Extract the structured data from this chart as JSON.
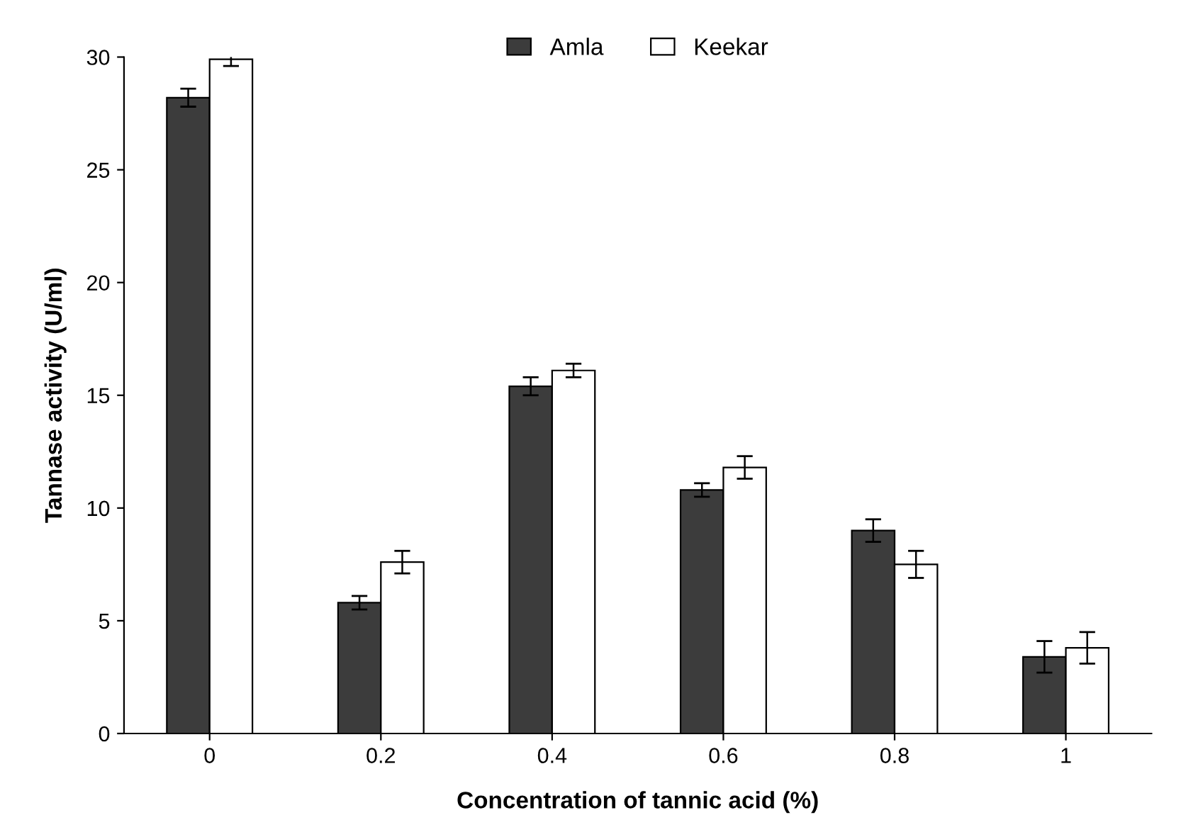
{
  "chart_data": {
    "type": "bar",
    "xlabel": "Concentration of tannic acid (%)",
    "ylabel": "Tannase activity (U/ml)",
    "categories": [
      "0",
      "0.2",
      "0.4",
      "0.6",
      "0.8",
      "1"
    ],
    "series": [
      {
        "name": "Amla",
        "color": "#3c3c3c",
        "values": [
          28.2,
          5.8,
          15.4,
          10.8,
          9.0,
          3.4
        ],
        "errors": [
          0.4,
          0.3,
          0.4,
          0.3,
          0.5,
          0.7
        ]
      },
      {
        "name": "Keekar",
        "color": "#ffffff",
        "values": [
          29.9,
          7.6,
          16.1,
          11.8,
          7.5,
          3.8
        ],
        "errors": [
          0.3,
          0.5,
          0.3,
          0.5,
          0.6,
          0.7
        ]
      }
    ],
    "ylim": [
      0,
      30
    ],
    "yticks": [
      0,
      5,
      10,
      15,
      20,
      25,
      30
    ],
    "grid": false,
    "legend": "top"
  }
}
